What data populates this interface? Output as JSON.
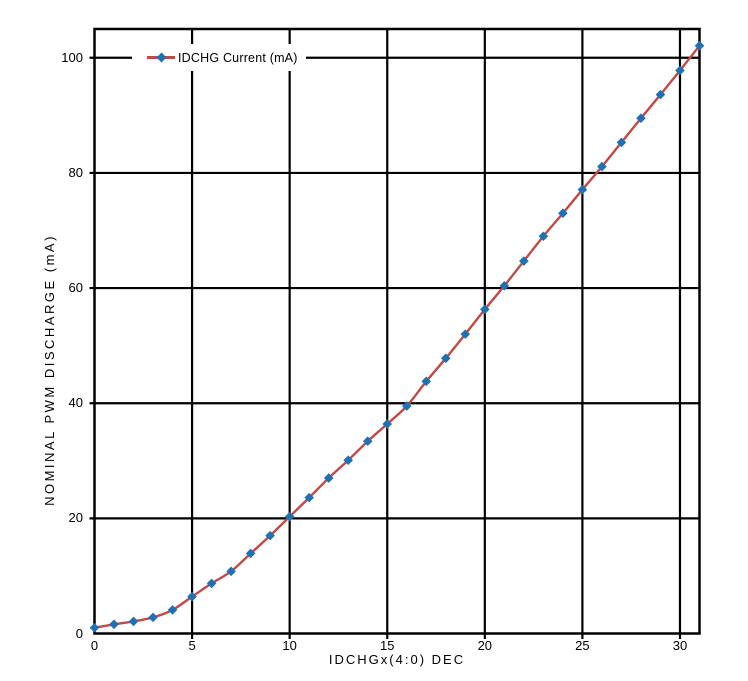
{
  "chart_data": {
    "type": "line",
    "title": "",
    "xlabel": "IDCHGx(4:0) DEC",
    "ylabel": "NOMINAL PWM DISCHARGE (mA)",
    "xlim": [
      0,
      31
    ],
    "ylim": [
      0,
      105
    ],
    "x_ticks": [
      0,
      5,
      10,
      15,
      20,
      25,
      30
    ],
    "y_ticks": [
      0,
      20,
      40,
      60,
      80,
      100
    ],
    "grid": true,
    "grid_color": "#000000",
    "axis_color": "#000000",
    "background_color": "#FFFFFF",
    "legend": {
      "position": "top-inside",
      "label": "IDCHG Current (mA)"
    },
    "x": [
      0,
      1,
      2,
      3,
      4,
      5,
      6,
      7,
      8,
      9,
      10,
      11,
      12,
      13,
      14,
      15,
      16,
      17,
      18,
      19,
      20,
      21,
      22,
      23,
      24,
      25,
      26,
      27,
      28,
      29,
      30,
      31
    ],
    "series": [
      {
        "name": "IDCHG Current (mA)",
        "line_color": "#C24944",
        "marker": "diamond",
        "marker_color": "#1E71B5",
        "values": [
          1,
          1.6,
          2.1,
          2.8,
          4.1,
          6.4,
          8.7,
          10.8,
          13.9,
          17,
          20.3,
          23.6,
          27,
          30.1,
          33.4,
          36.4,
          39.5,
          43.8,
          47.8,
          52,
          56.3,
          60.4,
          64.7,
          69,
          73,
          77.1,
          81.1,
          85.3,
          89.5,
          93.6,
          97.8,
          102.1
        ]
      }
    ]
  }
}
